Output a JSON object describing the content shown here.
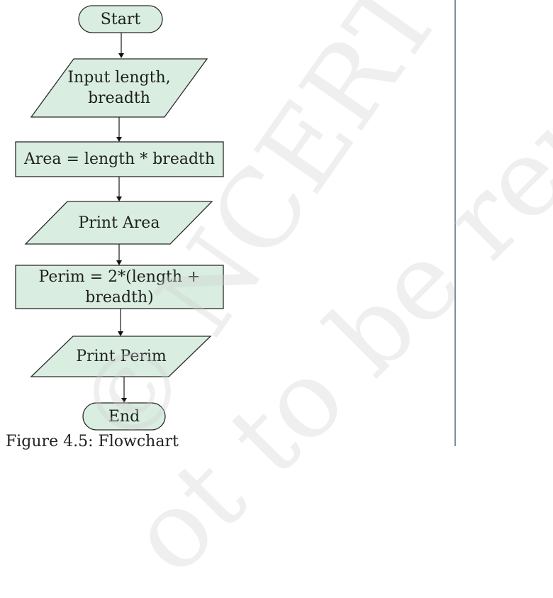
{
  "flowchart": {
    "start": "Start",
    "input": "Input length,\nbreadth",
    "area": "Area = length *  breadth",
    "print_area": "Print Area",
    "perim": "Perim = 2*(length +\n     breadth)",
    "print_perim": "Print Perim",
    "end": "End"
  },
  "caption": "Figure 4.5: Flowchart",
  "watermark": {
    "line1": "© NCERT",
    "line2": "ot to be republished"
  },
  "colors": {
    "node_fill": "#d9eee0",
    "node_stroke": "#2a2a2a",
    "divider": "#7e8da4"
  }
}
